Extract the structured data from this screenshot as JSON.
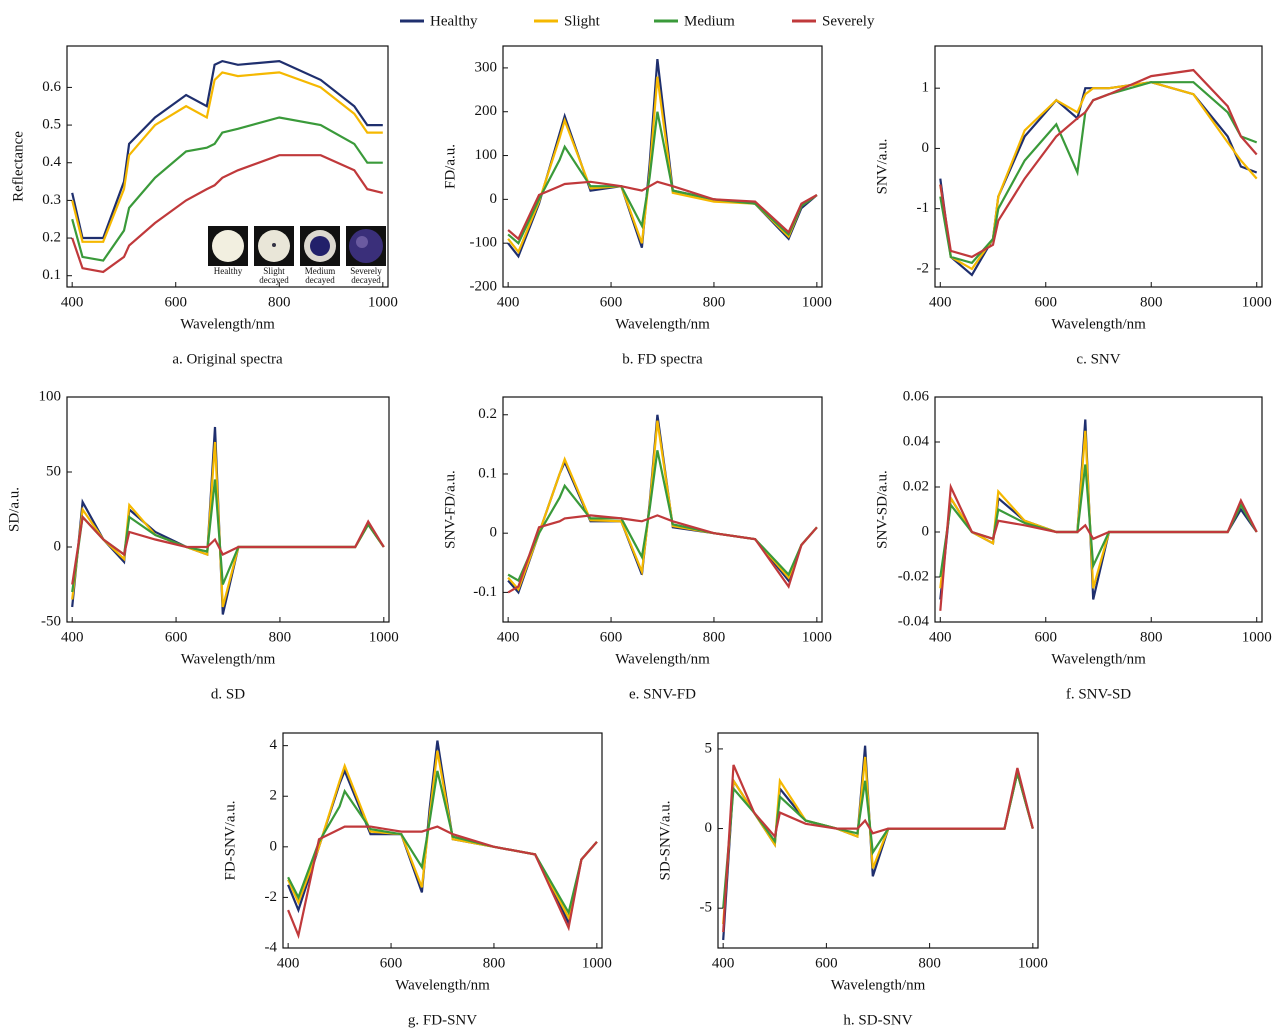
{
  "chart_data": [
    {
      "type": "line",
      "caption": "a. Original spectra",
      "xlabel": "Wavelength/nm",
      "ylabel": "Reflectance",
      "inset_labels": [
        "Healthy",
        "Slight decayed",
        "Medium decayed",
        "Severely decayed"
      ],
      "x": [
        400,
        420,
        460,
        500,
        510,
        560,
        620,
        660,
        675,
        690,
        720,
        800,
        880,
        945,
        970,
        1000
      ],
      "xlim": [
        390,
        1010
      ],
      "xticks": [
        400,
        600,
        800,
        1000
      ],
      "ylim": [
        0.07,
        0.71
      ],
      "yticks": [
        0.1,
        0.2,
        0.3,
        0.4,
        0.5,
        0.6
      ],
      "series": [
        {
          "name": "Healthy",
          "color": "#1f2f6e",
          "values": [
            0.32,
            0.2,
            0.2,
            0.35,
            0.45,
            0.52,
            0.58,
            0.55,
            0.66,
            0.67,
            0.66,
            0.67,
            0.62,
            0.55,
            0.5,
            0.5
          ]
        },
        {
          "name": "Slight",
          "color": "#f5b800",
          "values": [
            0.3,
            0.19,
            0.19,
            0.33,
            0.42,
            0.5,
            0.55,
            0.52,
            0.62,
            0.64,
            0.63,
            0.64,
            0.6,
            0.53,
            0.48,
            0.48
          ]
        },
        {
          "name": "Medium",
          "color": "#3a9a3a",
          "values": [
            0.25,
            0.15,
            0.14,
            0.22,
            0.28,
            0.36,
            0.43,
            0.44,
            0.45,
            0.48,
            0.49,
            0.52,
            0.5,
            0.45,
            0.4,
            0.4
          ]
        },
        {
          "name": "Severely",
          "color": "#c0393b",
          "values": [
            0.2,
            0.12,
            0.11,
            0.15,
            0.18,
            0.24,
            0.3,
            0.33,
            0.34,
            0.36,
            0.38,
            0.42,
            0.42,
            0.38,
            0.33,
            0.32
          ]
        }
      ]
    },
    {
      "type": "line",
      "caption": "b. FD spectra",
      "xlabel": "Wavelength/nm",
      "ylabel": "FD/a.u.",
      "x": [
        400,
        420,
        460,
        500,
        510,
        560,
        620,
        660,
        675,
        690,
        720,
        800,
        880,
        945,
        970,
        1000
      ],
      "xlim": [
        390,
        1010
      ],
      "xticks": [
        400,
        600,
        800,
        1000
      ],
      "ylim": [
        -200,
        350
      ],
      "yticks": [
        -200,
        -100,
        0,
        100,
        200,
        300
      ],
      "series": [
        {
          "name": "Healthy",
          "color": "#1f2f6e",
          "values": [
            -100,
            -130,
            -10,
            150,
            190,
            20,
            30,
            -110,
            80,
            320,
            20,
            0,
            -10,
            -90,
            -20,
            10
          ]
        },
        {
          "name": "Slight",
          "color": "#f5b800",
          "values": [
            -90,
            -120,
            -5,
            140,
            180,
            25,
            30,
            -100,
            60,
            280,
            15,
            -5,
            -10,
            -85,
            -15,
            10
          ]
        },
        {
          "name": "Medium",
          "color": "#3a9a3a",
          "values": [
            -80,
            -100,
            0,
            90,
            120,
            30,
            30,
            -60,
            50,
            200,
            20,
            0,
            -10,
            -80,
            -15,
            10
          ]
        },
        {
          "name": "Severely",
          "color": "#c0393b",
          "values": [
            -70,
            -90,
            10,
            30,
            35,
            40,
            30,
            20,
            30,
            40,
            30,
            0,
            -5,
            -75,
            -10,
            10
          ]
        }
      ]
    },
    {
      "type": "line",
      "caption": "c. SNV",
      "xlabel": "Wavelength/nm",
      "ylabel": "SNV/a.u.",
      "x": [
        400,
        420,
        460,
        500,
        510,
        560,
        620,
        660,
        675,
        690,
        720,
        800,
        880,
        945,
        970,
        1000
      ],
      "xlim": [
        390,
        1010
      ],
      "xticks": [
        400,
        600,
        800,
        1000
      ],
      "ylim": [
        -2.3,
        1.7
      ],
      "yticks": [
        -2,
        -1,
        0,
        1
      ],
      "series": [
        {
          "name": "Healthy",
          "color": "#1f2f6e",
          "values": [
            -0.5,
            -1.8,
            -2.1,
            -1.5,
            -0.8,
            0.2,
            0.8,
            0.5,
            1.0,
            1.0,
            1.0,
            1.1,
            0.9,
            0.2,
            -0.3,
            -0.4
          ]
        },
        {
          "name": "Slight",
          "color": "#f5b800",
          "values": [
            -0.6,
            -1.8,
            -2.0,
            -1.5,
            -0.8,
            0.3,
            0.8,
            0.6,
            0.9,
            1.0,
            1.0,
            1.1,
            0.9,
            0.1,
            -0.2,
            -0.5
          ]
        },
        {
          "name": "Medium",
          "color": "#3a9a3a",
          "values": [
            -0.8,
            -1.8,
            -1.9,
            -1.5,
            -1.0,
            -0.2,
            0.4,
            -0.4,
            0.6,
            0.8,
            0.9,
            1.1,
            1.1,
            0.6,
            0.2,
            0.1
          ]
        },
        {
          "name": "Severely",
          "color": "#c0393b",
          "values": [
            -0.6,
            -1.7,
            -1.8,
            -1.6,
            -1.2,
            -0.5,
            0.2,
            0.5,
            0.6,
            0.8,
            0.9,
            1.2,
            1.3,
            0.7,
            0.2,
            -0.1
          ]
        }
      ]
    },
    {
      "type": "line",
      "caption": "d. SD",
      "xlabel": "Wavelength/nm",
      "ylabel": "SD/a.u.",
      "x": [
        400,
        420,
        460,
        500,
        510,
        560,
        620,
        660,
        675,
        690,
        720,
        800,
        880,
        945,
        970,
        1000
      ],
      "xlim": [
        390,
        1010
      ],
      "xticks": [
        400,
        600,
        800,
        1000
      ],
      "ylim": [
        -50,
        100
      ],
      "yticks": [
        -50,
        0,
        50,
        100
      ],
      "series": [
        {
          "name": "Healthy",
          "color": "#1f2f6e",
          "values": [
            -40,
            30,
            5,
            -10,
            25,
            10,
            0,
            -5,
            80,
            -45,
            0,
            0,
            0,
            0,
            15,
            0
          ]
        },
        {
          "name": "Slight",
          "color": "#f5b800",
          "values": [
            -35,
            25,
            5,
            -8,
            28,
            8,
            0,
            -5,
            70,
            -40,
            0,
            0,
            0,
            0,
            15,
            0
          ]
        },
        {
          "name": "Medium",
          "color": "#3a9a3a",
          "values": [
            -30,
            20,
            5,
            -5,
            20,
            8,
            0,
            -3,
            45,
            -25,
            0,
            0,
            0,
            0,
            15,
            0
          ]
        },
        {
          "name": "Severely",
          "color": "#c0393b",
          "values": [
            -25,
            20,
            5,
            -5,
            10,
            5,
            0,
            0,
            5,
            -5,
            0,
            0,
            0,
            0,
            17,
            0
          ]
        }
      ]
    },
    {
      "type": "line",
      "caption": "e. SNV-FD",
      "xlabel": "Wavelength/nm",
      "ylabel": "SNV-FD/a.u.",
      "x": [
        400,
        420,
        460,
        500,
        510,
        560,
        620,
        660,
        675,
        690,
        720,
        800,
        880,
        945,
        970,
        1000
      ],
      "xlim": [
        390,
        1010
      ],
      "xticks": [
        400,
        600,
        800,
        1000
      ],
      "ylim": [
        -0.15,
        0.23
      ],
      "yticks": [
        -0.1,
        0,
        0.1,
        0.2
      ],
      "series": [
        {
          "name": "Healthy",
          "color": "#1f2f6e",
          "values": [
            -0.08,
            -0.1,
            0,
            0.1,
            0.12,
            0.02,
            0.02,
            -0.07,
            0.05,
            0.2,
            0.01,
            0,
            -0.01,
            -0.08,
            -0.02,
            0.01
          ]
        },
        {
          "name": "Slight",
          "color": "#f5b800",
          "values": [
            -0.075,
            -0.095,
            0,
            0.1,
            0.125,
            0.022,
            0.02,
            -0.065,
            0.045,
            0.19,
            0.012,
            0,
            -0.01,
            -0.075,
            -0.02,
            0.01
          ]
        },
        {
          "name": "Medium",
          "color": "#3a9a3a",
          "values": [
            -0.07,
            -0.08,
            0,
            0.06,
            0.08,
            0.025,
            0.025,
            -0.04,
            0.04,
            0.14,
            0.015,
            0,
            -0.01,
            -0.07,
            -0.02,
            0.01
          ]
        },
        {
          "name": "Severely",
          "color": "#c0393b",
          "values": [
            -0.1,
            -0.09,
            0.01,
            0.02,
            0.025,
            0.03,
            0.025,
            0.02,
            0.025,
            0.03,
            0.02,
            0,
            -0.01,
            -0.09,
            -0.02,
            0.01
          ]
        }
      ]
    },
    {
      "type": "line",
      "caption": "f. SNV-SD",
      "xlabel": "Wavelength/nm",
      "ylabel": "SNV-SD/a.u.",
      "x": [
        400,
        420,
        460,
        500,
        510,
        560,
        620,
        660,
        675,
        690,
        720,
        800,
        880,
        945,
        970,
        1000
      ],
      "xlim": [
        390,
        1010
      ],
      "xticks": [
        400,
        600,
        800,
        1000
      ],
      "ylim": [
        -0.04,
        0.06
      ],
      "yticks": [
        -0.04,
        -0.02,
        0,
        0.02,
        0.04,
        0.06
      ],
      "series": [
        {
          "name": "Healthy",
          "color": "#1f2f6e",
          "values": [
            -0.03,
            0.015,
            0,
            -0.005,
            0.015,
            0.005,
            0,
            0,
            0.05,
            -0.03,
            0,
            0,
            0,
            0,
            0.01,
            0
          ]
        },
        {
          "name": "Slight",
          "color": "#f5b800",
          "values": [
            -0.025,
            0.015,
            0,
            -0.005,
            0.018,
            0.005,
            0,
            0,
            0.045,
            -0.025,
            0,
            0,
            0,
            0,
            0.012,
            0
          ]
        },
        {
          "name": "Medium",
          "color": "#3a9a3a",
          "values": [
            -0.02,
            0.012,
            0,
            -0.003,
            0.01,
            0.004,
            0,
            0,
            0.03,
            -0.015,
            0,
            0,
            0,
            0,
            0.012,
            0
          ]
        },
        {
          "name": "Severely",
          "color": "#c0393b",
          "values": [
            -0.035,
            0.02,
            0,
            -0.003,
            0.005,
            0.003,
            0,
            0,
            0.003,
            -0.003,
            0,
            0,
            0,
            0,
            0.014,
            0
          ]
        }
      ]
    },
    {
      "type": "line",
      "caption": "g. FD-SNV",
      "xlabel": "Wavelength/nm",
      "ylabel": "FD-SNV/a.u.",
      "x": [
        400,
        420,
        460,
        500,
        510,
        560,
        620,
        660,
        675,
        690,
        720,
        800,
        880,
        945,
        970,
        1000
      ],
      "xlim": [
        390,
        1010
      ],
      "xticks": [
        400,
        600,
        800,
        1000
      ],
      "ylim": [
        -4,
        4.5
      ],
      "yticks": [
        -4,
        -2,
        0,
        2,
        4
      ],
      "series": [
        {
          "name": "Healthy",
          "color": "#1f2f6e",
          "values": [
            -1.5,
            -2.5,
            0,
            2.5,
            3.0,
            0.5,
            0.5,
            -1.8,
            1.5,
            4.2,
            0.3,
            0,
            -0.3,
            -3,
            -0.5,
            0.2
          ]
        },
        {
          "name": "Slight",
          "color": "#f5b800",
          "values": [
            -1.3,
            -2.2,
            0,
            2.6,
            3.2,
            0.6,
            0.5,
            -1.6,
            1.2,
            3.8,
            0.3,
            0,
            -0.3,
            -2.8,
            -0.5,
            0.2
          ]
        },
        {
          "name": "Medium",
          "color": "#3a9a3a",
          "values": [
            -1.2,
            -2,
            0.2,
            1.6,
            2.2,
            0.7,
            0.5,
            -0.8,
            1.0,
            3.0,
            0.4,
            0,
            -0.3,
            -2.6,
            -0.5,
            0.2
          ]
        },
        {
          "name": "Severely",
          "color": "#c0393b",
          "values": [
            -2.5,
            -3.5,
            0.3,
            0.7,
            0.8,
            0.8,
            0.6,
            0.6,
            0.7,
            0.8,
            0.5,
            0,
            -0.3,
            -3.2,
            -0.5,
            0.2
          ]
        }
      ]
    },
    {
      "type": "line",
      "caption": "h. SD-SNV",
      "xlabel": "Wavelength/nm",
      "ylabel": "SD-SNV/a.u.",
      "x": [
        400,
        420,
        460,
        500,
        510,
        560,
        620,
        660,
        675,
        690,
        720,
        800,
        880,
        945,
        970,
        1000
      ],
      "xlim": [
        390,
        1010
      ],
      "xticks": [
        400,
        600,
        800,
        1000
      ],
      "ylim": [
        -7.5,
        6
      ],
      "yticks": [
        -5,
        0,
        5
      ],
      "series": [
        {
          "name": "Healthy",
          "color": "#1f2f6e",
          "values": [
            -7,
            3,
            1,
            -1,
            2.5,
            0.5,
            0,
            -0.5,
            5.2,
            -3,
            0,
            0,
            0,
            0,
            3.5,
            0
          ]
        },
        {
          "name": "Slight",
          "color": "#f5b800",
          "values": [
            -6,
            3,
            1,
            -1,
            3,
            0.5,
            0,
            -0.5,
            4.5,
            -2.5,
            0,
            0,
            0,
            0,
            3.5,
            0
          ]
        },
        {
          "name": "Medium",
          "color": "#3a9a3a",
          "values": [
            -5,
            2.5,
            1,
            -0.8,
            2,
            0.5,
            0,
            -0.3,
            3,
            -1.5,
            0,
            0,
            0,
            0,
            3.5,
            0
          ]
        },
        {
          "name": "Severely",
          "color": "#c0393b",
          "values": [
            -6.5,
            4,
            1,
            -0.5,
            1,
            0.3,
            0,
            0,
            0.5,
            -0.3,
            0,
            0,
            0,
            0,
            3.8,
            0
          ]
        }
      ]
    }
  ]
}
